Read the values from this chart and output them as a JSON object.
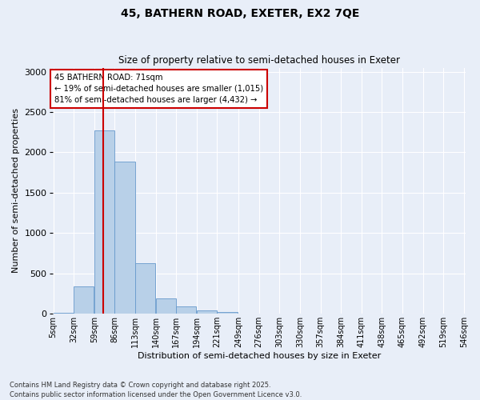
{
  "title1": "45, BATHERN ROAD, EXETER, EX2 7QE",
  "title2": "Size of property relative to semi-detached houses in Exeter",
  "xlabel": "Distribution of semi-detached houses by size in Exeter",
  "ylabel": "Number of semi-detached properties",
  "footnote": "Contains HM Land Registry data © Crown copyright and database right 2025.\nContains public sector information licensed under the Open Government Licence v3.0.",
  "bins": [
    "5sqm",
    "32sqm",
    "59sqm",
    "86sqm",
    "113sqm",
    "140sqm",
    "167sqm",
    "194sqm",
    "221sqm",
    "249sqm",
    "276sqm",
    "303sqm",
    "330sqm",
    "357sqm",
    "384sqm",
    "411sqm",
    "438sqm",
    "465sqm",
    "492sqm",
    "519sqm",
    "546sqm"
  ],
  "bin_edges": [
    5,
    32,
    59,
    86,
    113,
    140,
    167,
    194,
    221,
    249,
    276,
    303,
    330,
    357,
    384,
    411,
    438,
    465,
    492,
    519,
    546
  ],
  "values": [
    15,
    340,
    2270,
    1890,
    630,
    195,
    90,
    45,
    20,
    0,
    0,
    0,
    0,
    0,
    0,
    0,
    0,
    0,
    0,
    0
  ],
  "property_size": 71,
  "annotation_text": "45 BATHERN ROAD: 71sqm\n← 19% of semi-detached houses are smaller (1,015)\n81% of semi-detached houses are larger (4,432) →",
  "bar_color": "#b8d0e8",
  "bar_edge_color": "#6699cc",
  "vline_color": "#cc0000",
  "box_edge_color": "#cc0000",
  "bg_color": "#e8eef8",
  "grid_color": "#ffffff",
  "ylim": [
    0,
    3050
  ],
  "yticks": [
    0,
    500,
    1000,
    1500,
    2000,
    2500,
    3000
  ]
}
